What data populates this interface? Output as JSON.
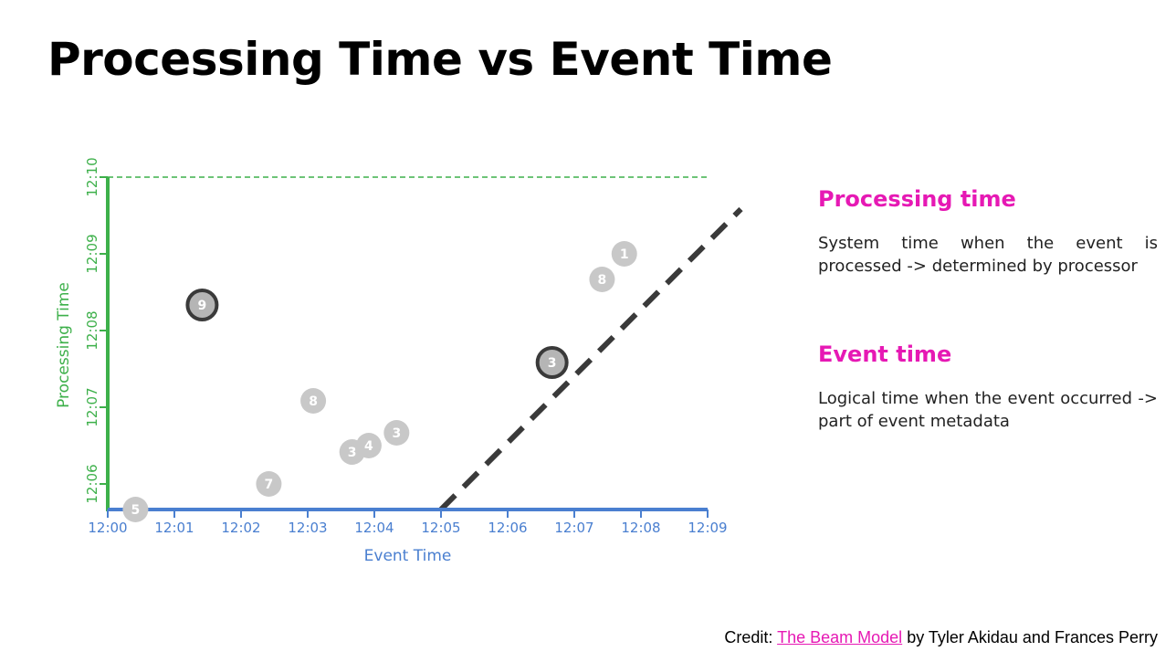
{
  "slide": {
    "title": "Processing Time vs Event Time"
  },
  "sections": [
    {
      "heading": "Processing time",
      "body": "System time when the event is processed -> determined by processor"
    },
    {
      "heading": "Event time",
      "body": "Logical time when the event occurred -> part of event metadata"
    }
  ],
  "credit": {
    "prefix": "Credit:",
    "link_text": "The Beam Model",
    "suffix": "by Tyler Akidau and Frances Perry"
  },
  "colors": {
    "x_axis": "#4a7fd0",
    "y_axis": "#3db04a",
    "marker_fill": "#c8c8c8",
    "marker_highlight_stroke": "#3a3a3a",
    "ideal_line": "#3a3a3a",
    "heading_accent": "#e619b4"
  },
  "chart_data": {
    "type": "scatter",
    "xlabel": "Event Time",
    "ylabel": "Processing Time",
    "x_ticks": [
      "12:00",
      "12:01",
      "12:02",
      "12:03",
      "12:04",
      "12:05",
      "12:06",
      "12:07",
      "12:08",
      "12:09"
    ],
    "y_ticks": [
      "12:06",
      "12:07",
      "12:08",
      "12:09",
      "12:10"
    ],
    "xlim": [
      "12:00",
      "12:09"
    ],
    "ylim": [
      "12:05:40",
      "12:10"
    ],
    "grid": false,
    "reference_lines": [
      {
        "style": "dashed",
        "orientation": "horizontal",
        "y": "12:10"
      },
      {
        "style": "dashed-thick",
        "from": {
          "x": "12:05",
          "y": "12:05:40"
        },
        "to": {
          "x": "12:09:30",
          "y": "12:09:35"
        }
      }
    ],
    "points": [
      {
        "label": "5",
        "x": "12:00:25",
        "y": "12:05:40",
        "highlighted": false
      },
      {
        "label": "9",
        "x": "12:01:25",
        "y": "12:08:20",
        "highlighted": true
      },
      {
        "label": "7",
        "x": "12:02:25",
        "y": "12:05:60",
        "highlighted": false
      },
      {
        "label": "8",
        "x": "12:03:05",
        "y": "12:07:05",
        "highlighted": false
      },
      {
        "label": "3",
        "x": "12:03:40",
        "y": "12:06:25",
        "highlighted": false
      },
      {
        "label": "4",
        "x": "12:03:55",
        "y": "12:06:30",
        "highlighted": false
      },
      {
        "label": "3",
        "x": "12:04:20",
        "y": "12:06:40",
        "highlighted": false
      },
      {
        "label": "3",
        "x": "12:06:40",
        "y": "12:07:35",
        "highlighted": true
      },
      {
        "label": "8",
        "x": "12:07:25",
        "y": "12:08:40",
        "highlighted": false
      },
      {
        "label": "1",
        "x": "12:07:45",
        "y": "12:09:00",
        "highlighted": false
      }
    ]
  }
}
